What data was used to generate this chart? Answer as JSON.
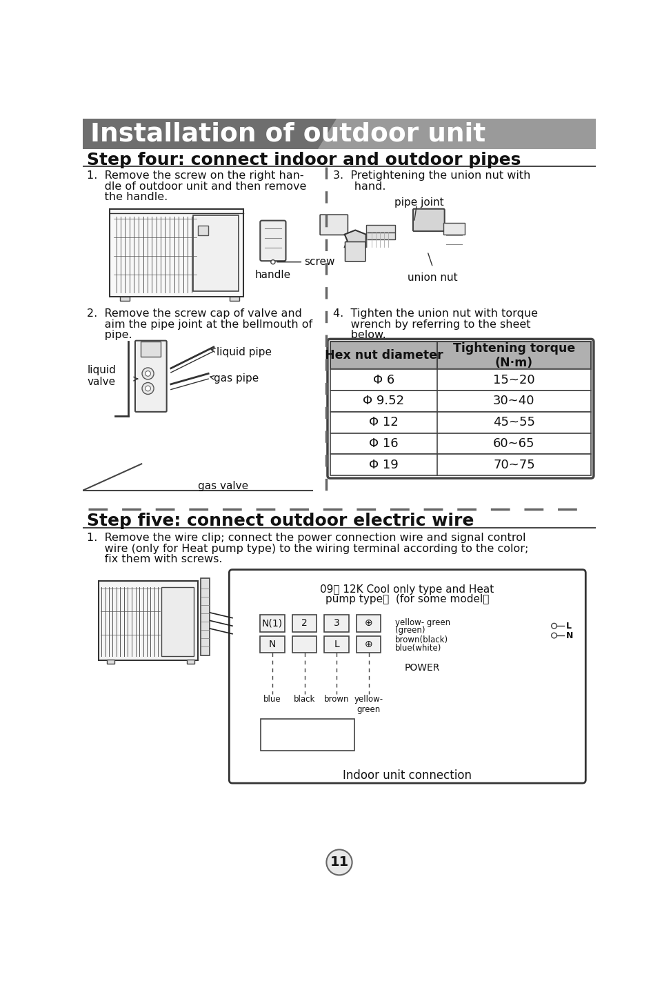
{
  "title": "Installation of outdoor unit",
  "step4_title": "Step four: connect indoor and outdoor pipes",
  "step5_title": "Step five: connect outdoor electric wire",
  "bg_color": "#ffffff",
  "header_bg": "#6e6e6e",
  "header_accent": "#888888",
  "title_text_color": "#ffffff",
  "step_title_color": "#111111",
  "body_text_color": "#111111",
  "table_header_bg": "#b0b0b0",
  "table_border_color": "#444444",
  "dashed_line_color": "#666666",
  "page_number": "11",
  "step4_text1": [
    "1.  Remove the screw on the right han-",
    "     dle of outdoor unit and then remove",
    "     the handle."
  ],
  "step4_text3": [
    "3.  Pretightening the union nut with",
    "      hand."
  ],
  "step4_text2": [
    "2.  Remove the screw cap of valve and",
    "     aim the pipe joint at the bellmouth of",
    "     pipe."
  ],
  "step4_text4": [
    "4.  Tighten the union nut with torque",
    "     wrench by referring to the sheet",
    "     below."
  ],
  "table_headers": [
    "Hex nut diameter",
    "Tightening torque\n(N·m)"
  ],
  "table_rows": [
    [
      "Φ 6",
      "15~20"
    ],
    [
      "Φ 9.52",
      "30~40"
    ],
    [
      "Φ 12",
      "45~55"
    ],
    [
      "Φ 16",
      "60~65"
    ],
    [
      "Φ 19",
      "70~75"
    ]
  ],
  "label_screw": "screw",
  "label_handle": "handle",
  "label_pipe_joint": "pipe joint",
  "label_union_nut": "union nut",
  "label_liquid_pipe": "liquid pipe",
  "label_gas_pipe": "gas pipe",
  "label_liquid_valve": "liquid\nvalve",
  "label_gas_valve": "gas valve",
  "step5_text": [
    "1.  Remove the wire clip; connect the power connection wire and signal control",
    "     wire (only for Heat pump type) to the wiring terminal according to the color;",
    "     fix them with screws."
  ],
  "wiring_title1": "09、 12K Cool only type and Heat",
  "wiring_title2": "pump type：  (for some model）",
  "wiring_caption": "Indoor unit connection",
  "page_bg_circle": "#e8e8e8"
}
